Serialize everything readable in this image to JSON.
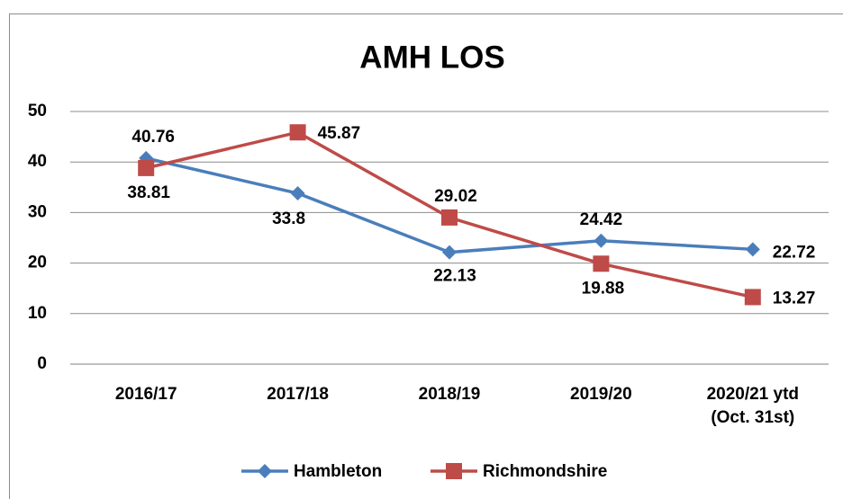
{
  "chart_data": {
    "type": "line",
    "title": "AMH LOS",
    "categories": [
      "2016/17",
      "2017/18",
      "2018/19",
      "2019/20",
      [
        "2020/21 ytd",
        "(Oct. 31st)"
      ]
    ],
    "series": [
      {
        "name": "Hambleton",
        "color": "#4a7ebb",
        "marker": "diamond",
        "values": [
          40.76,
          33.8,
          22.13,
          24.42,
          22.72
        ]
      },
      {
        "name": "Richmondshire",
        "color": "#be4b48",
        "marker": "square",
        "values": [
          38.81,
          45.87,
          29.02,
          19.88,
          13.27
        ]
      }
    ],
    "ylim": [
      0,
      50
    ],
    "yticks": [
      0,
      10,
      20,
      30,
      40,
      50
    ],
    "grid": true,
    "legend": "bottom"
  }
}
